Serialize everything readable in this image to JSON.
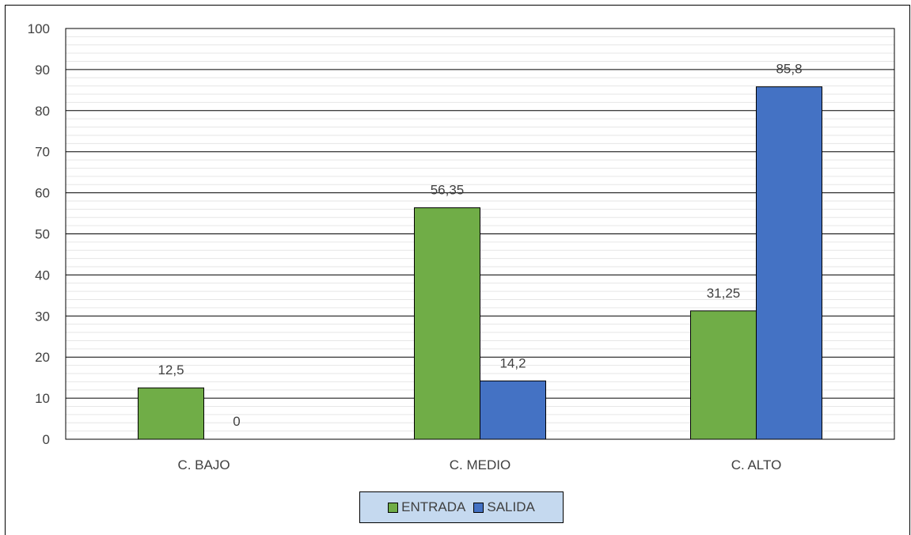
{
  "chart_data": {
    "type": "bar",
    "categories": [
      "C. BAJO",
      "C. MEDIO",
      "C. ALTO"
    ],
    "series": [
      {
        "name": "ENTRADA",
        "values": [
          12.5,
          56.35,
          31.25
        ],
        "labels": [
          "12,5",
          "56,35",
          "31,25"
        ],
        "color": "#70ad47"
      },
      {
        "name": "SALIDA",
        "values": [
          0,
          14.2,
          85.8
        ],
        "labels": [
          "0",
          "14,2",
          "85,8"
        ],
        "color": "#4472c4"
      }
    ],
    "ylim": [
      0,
      100
    ],
    "yticks": [
      0,
      10,
      20,
      30,
      40,
      50,
      60,
      70,
      80,
      90,
      100
    ],
    "grid": true,
    "legend_position": "bottom"
  },
  "legend": {
    "entrada_label": "ENTRADA",
    "salida_label": "SALIDA"
  }
}
